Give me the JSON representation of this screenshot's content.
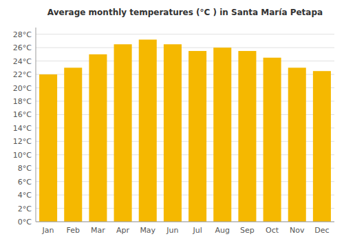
{
  "chart_data": {
    "type": "bar",
    "title": "Average monthly temperatures (°C ) in Santa María Petapa",
    "categories": [
      "Jan",
      "Feb",
      "Mar",
      "Apr",
      "May",
      "Jun",
      "Jul",
      "Aug",
      "Sep",
      "Oct",
      "Nov",
      "Dec"
    ],
    "values": [
      22.0,
      23.0,
      25.0,
      26.5,
      27.2,
      26.5,
      25.5,
      26.0,
      25.5,
      24.5,
      23.0,
      22.5
    ],
    "color": "#F5B800",
    "ylim": [
      0,
      29
    ],
    "yticks": [
      {
        "value": 0,
        "label": "0°C"
      },
      {
        "value": 2,
        "label": "2°C"
      },
      {
        "value": 4,
        "label": "4°C"
      },
      {
        "value": 6,
        "label": "6°C"
      },
      {
        "value": 8,
        "label": "8°C"
      },
      {
        "value": 10,
        "label": "10°C"
      },
      {
        "value": 12,
        "label": "12°C"
      },
      {
        "value": 14,
        "label": "14°C"
      },
      {
        "value": 16,
        "label": "16°C"
      },
      {
        "value": 18,
        "label": "18°C"
      },
      {
        "value": 20,
        "label": "20°C"
      },
      {
        "value": 22,
        "label": "22°C"
      },
      {
        "value": 24,
        "label": "24°C"
      },
      {
        "value": 26,
        "label": "26°C"
      },
      {
        "value": 28,
        "label": "28°C"
      }
    ],
    "grid": true
  }
}
